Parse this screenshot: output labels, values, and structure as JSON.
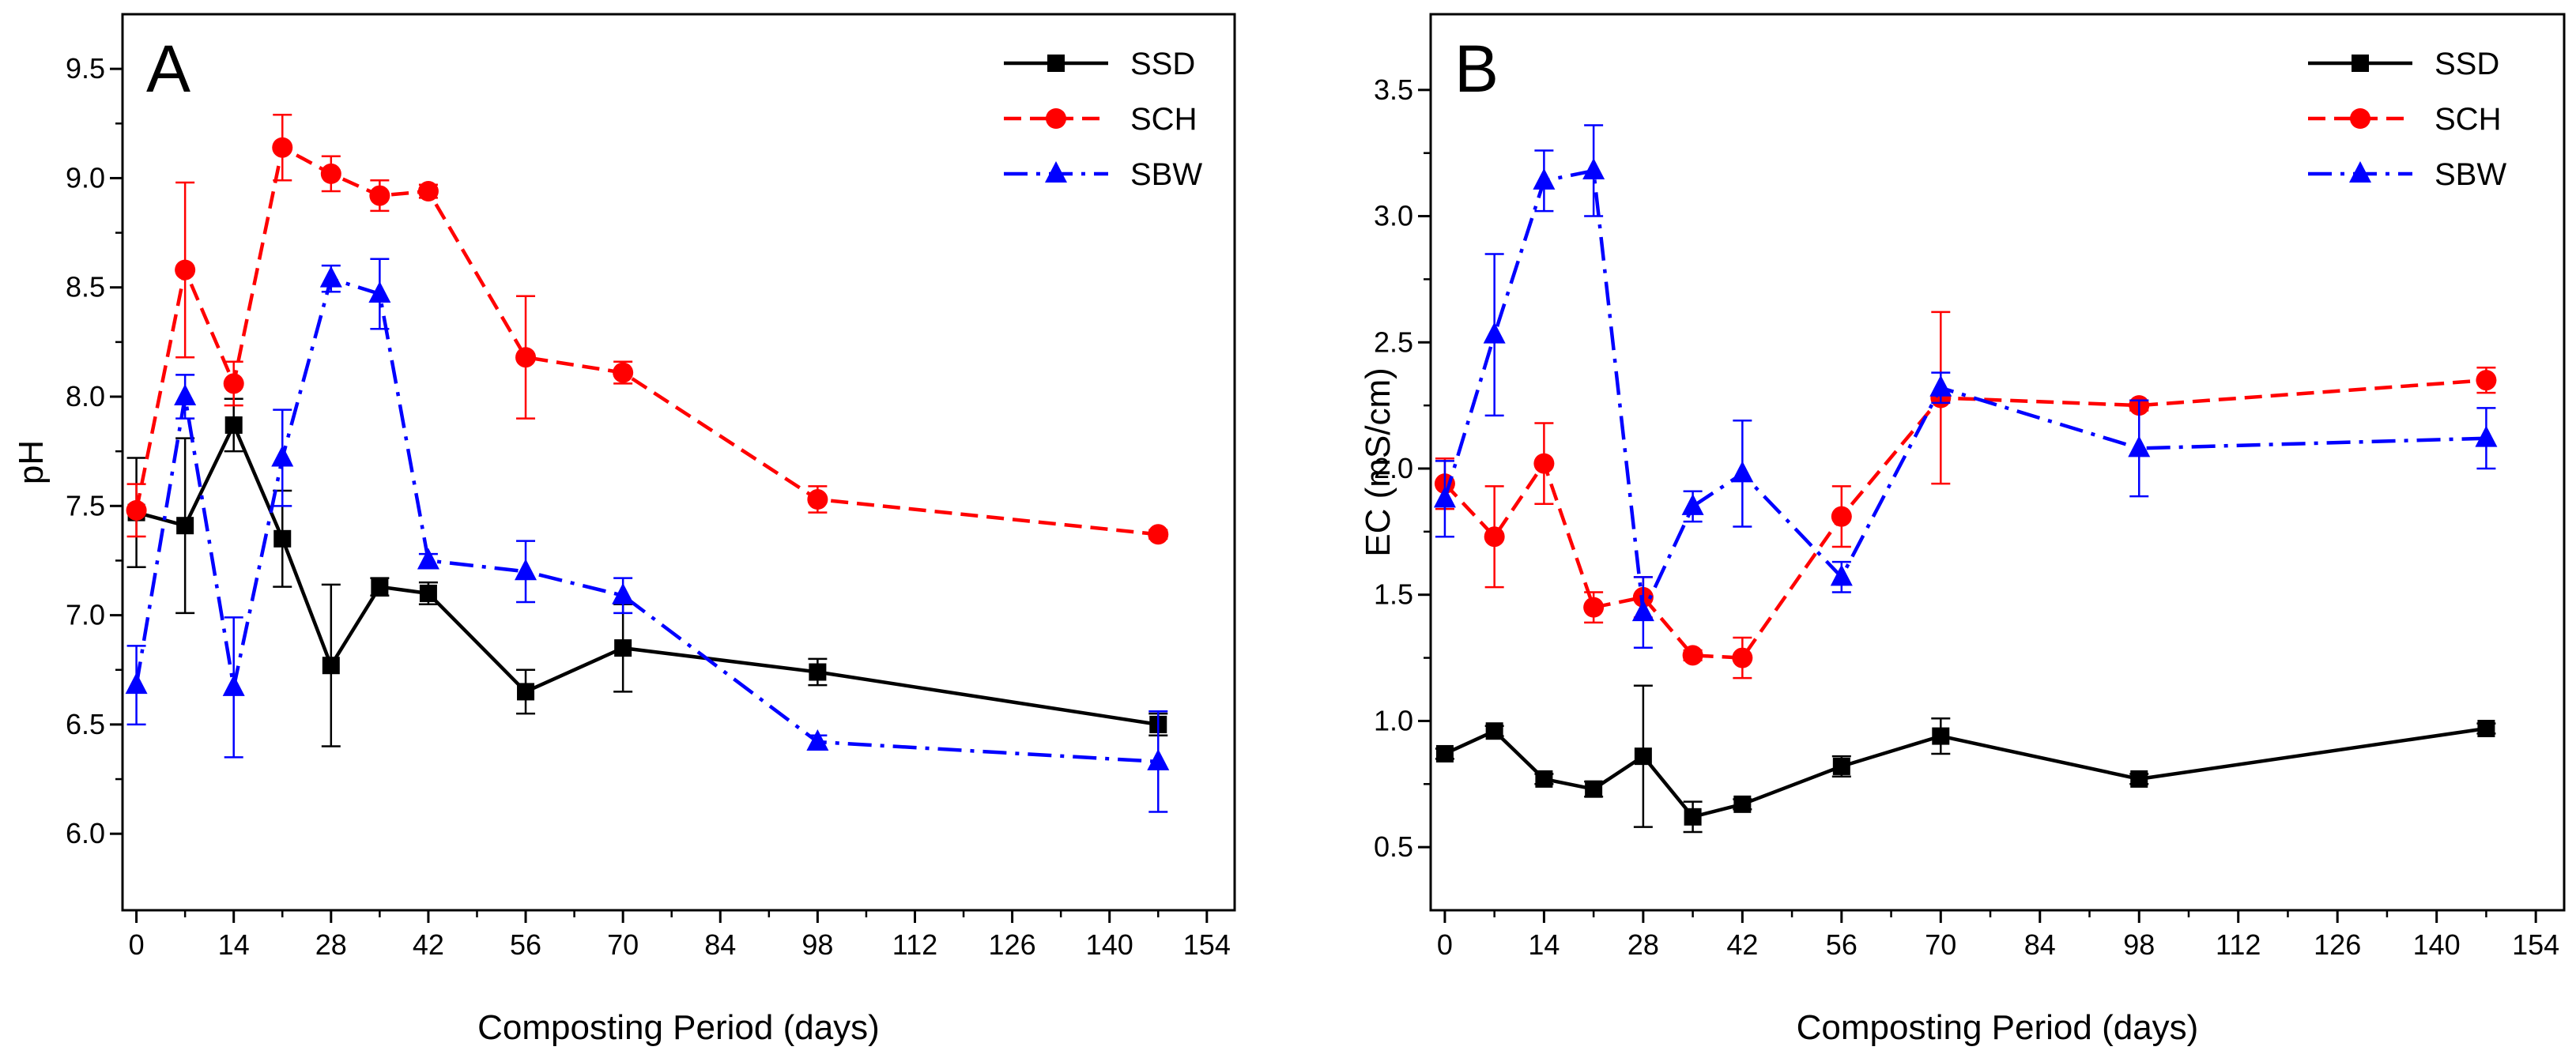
{
  "chart_data": [
    {
      "type": "line",
      "panel_label": "A",
      "title": "",
      "xlabel": "Composting Period (days)",
      "ylabel": "pH",
      "xlim": [
        -2,
        158
      ],
      "ylim": [
        5.65,
        9.75
      ],
      "xticks": [
        0,
        14,
        28,
        42,
        56,
        70,
        84,
        98,
        112,
        126,
        140,
        154
      ],
      "yticks": [
        6.0,
        6.5,
        7.0,
        7.5,
        8.0,
        8.5,
        9.0,
        9.5
      ],
      "ytick_labels": [
        "6.0",
        "6.5",
        "7.0",
        "7.5",
        "8.0",
        "8.5",
        "9.0",
        "9.5"
      ],
      "legend_position": "top-right",
      "series": [
        {
          "name": "SSD",
          "color": "#000000",
          "line": "solid",
          "marker": "square",
          "x": [
            0,
            7,
            14,
            21,
            28,
            35,
            42,
            56,
            70,
            98,
            147
          ],
          "values": [
            7.47,
            7.41,
            7.87,
            7.35,
            6.77,
            7.13,
            7.1,
            6.65,
            6.85,
            6.74,
            6.5
          ],
          "errors": [
            0.25,
            0.4,
            0.12,
            0.22,
            0.37,
            0.04,
            0.05,
            0.1,
            0.2,
            0.06,
            0.05
          ]
        },
        {
          "name": "SCH",
          "color": "#ff0000",
          "line": "dashed",
          "marker": "circle",
          "x": [
            0,
            7,
            14,
            21,
            28,
            35,
            42,
            56,
            70,
            98,
            147
          ],
          "values": [
            7.48,
            8.58,
            8.06,
            9.14,
            9.02,
            8.92,
            8.94,
            8.18,
            8.11,
            7.53,
            7.37
          ],
          "errors": [
            0.12,
            0.4,
            0.1,
            0.15,
            0.08,
            0.07,
            0.03,
            0.28,
            0.05,
            0.06,
            0.02
          ]
        },
        {
          "name": "SBW",
          "color": "#0000ff",
          "line": "dashdot",
          "marker": "triangle",
          "x": [
            0,
            7,
            14,
            21,
            28,
            35,
            42,
            56,
            70,
            98,
            147
          ],
          "values": [
            6.68,
            8.0,
            6.67,
            7.72,
            8.54,
            8.47,
            7.25,
            7.2,
            7.09,
            6.42,
            6.33
          ],
          "errors": [
            0.18,
            0.1,
            0.32,
            0.22,
            0.06,
            0.16,
            0.03,
            0.14,
            0.08,
            0.03,
            0.23
          ]
        }
      ]
    },
    {
      "type": "line",
      "panel_label": "B",
      "title": "",
      "xlabel": "Composting Period (days)",
      "ylabel": "EC (mS/cm)",
      "xlim": [
        -2,
        158
      ],
      "ylim": [
        0.25,
        3.8
      ],
      "xticks": [
        0,
        14,
        28,
        42,
        56,
        70,
        84,
        98,
        112,
        126,
        140,
        154
      ],
      "yticks": [
        0.5,
        1.0,
        1.5,
        2.0,
        2.5,
        3.0,
        3.5
      ],
      "ytick_labels": [
        "0.5",
        "1.0",
        "1.5",
        "2.0",
        "2.5",
        "3.0",
        "3.5"
      ],
      "legend_position": "top-right",
      "series": [
        {
          "name": "SSD",
          "color": "#000000",
          "line": "solid",
          "marker": "square",
          "x": [
            0,
            7,
            14,
            21,
            28,
            35,
            42,
            56,
            70,
            98,
            147
          ],
          "values": [
            0.87,
            0.96,
            0.77,
            0.73,
            0.86,
            0.62,
            0.67,
            0.82,
            0.94,
            0.77,
            0.97
          ],
          "errors": [
            0.02,
            0.02,
            0.02,
            0.03,
            0.28,
            0.06,
            0.02,
            0.04,
            0.07,
            0.02,
            0.02
          ]
        },
        {
          "name": "SCH",
          "color": "#ff0000",
          "line": "dashed",
          "marker": "circle",
          "x": [
            0,
            7,
            14,
            21,
            28,
            35,
            42,
            56,
            70,
            98,
            147
          ],
          "values": [
            1.94,
            1.73,
            2.02,
            1.45,
            1.49,
            1.26,
            1.25,
            1.81,
            2.28,
            2.25,
            2.35
          ],
          "errors": [
            0.1,
            0.2,
            0.16,
            0.06,
            0.08,
            0.02,
            0.08,
            0.12,
            0.34,
            0.02,
            0.05
          ]
        },
        {
          "name": "SBW",
          "color": "#0000ff",
          "line": "dashdot",
          "marker": "triangle",
          "x": [
            0,
            7,
            14,
            21,
            28,
            35,
            42,
            56,
            70,
            98,
            147
          ],
          "values": [
            1.88,
            2.53,
            3.14,
            3.18,
            1.43,
            1.85,
            1.98,
            1.57,
            2.32,
            2.08,
            2.12
          ],
          "errors": [
            0.15,
            0.32,
            0.12,
            0.18,
            0.14,
            0.06,
            0.21,
            0.06,
            0.06,
            0.19,
            0.12
          ]
        }
      ]
    }
  ]
}
